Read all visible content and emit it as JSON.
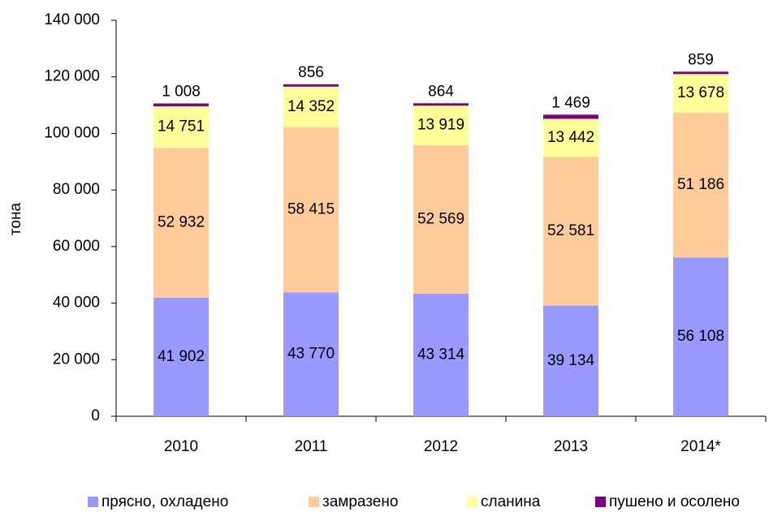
{
  "chart_data": {
    "type": "stacked_bar",
    "y_label": "тона",
    "categories": [
      "2010",
      "2011",
      "2012",
      "2013",
      "2014*"
    ],
    "series": [
      {
        "name": "прясно, охладено",
        "color": "#9999ff",
        "values": [
          41902,
          43770,
          43314,
          39134,
          56108
        ],
        "value_labels": [
          "41 902",
          "43 770",
          "43 314",
          "39 134",
          "56 108"
        ]
      },
      {
        "name": "замразено",
        "color": "#ffcc99",
        "values": [
          52932,
          58415,
          52569,
          52581,
          51186
        ],
        "value_labels": [
          "52 932",
          "58 415",
          "52 569",
          "52 581",
          "51 186"
        ]
      },
      {
        "name": "сланина",
        "color": "#ffff99",
        "values": [
          14751,
          14352,
          13919,
          13442,
          13678
        ],
        "value_labels": [
          "14 751",
          "14 352",
          "13 919",
          "13 442",
          "13 678"
        ]
      },
      {
        "name": "пушено и осолено",
        "color": "#800080",
        "values": [
          1008,
          856,
          864,
          1469,
          859
        ],
        "value_labels": [
          "1 008",
          "856",
          "864",
          "1 469",
          "859"
        ]
      }
    ],
    "ylim": [
      0,
      140000
    ],
    "yticks": [
      0,
      {
        "value": 20000,
        "label": "20 000"
      },
      {
        "value": 40000,
        "label": "40 000"
      },
      {
        "value": 60000,
        "label": "60 000"
      },
      {
        "value": 80000,
        "label": "80 000"
      },
      {
        "value": 100000,
        "label": "100 000"
      },
      {
        "value": 120000,
        "label": "120 000"
      },
      {
        "value": 140000,
        "label": "140 000"
      }
    ]
  }
}
